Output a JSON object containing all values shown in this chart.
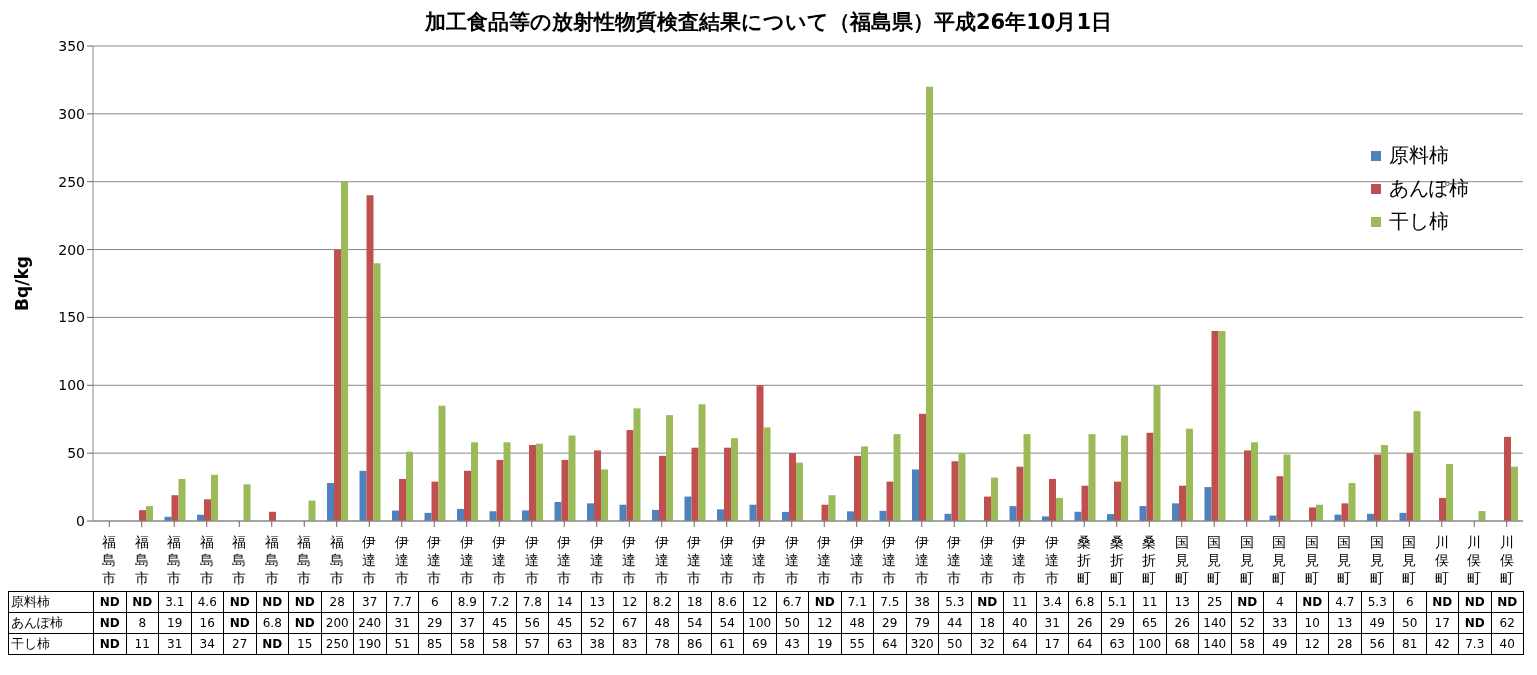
{
  "chart_data": {
    "type": "bar",
    "title": "加工食品等の放射性物質検査結果について（福島県）平成26年10月1日",
    "ylabel": "Bq/kg",
    "categories": [
      "福島市",
      "福島市",
      "福島市",
      "福島市",
      "福島市",
      "福島市",
      "福島市",
      "福島市",
      "伊達市",
      "伊達市",
      "伊達市",
      "伊達市",
      "伊達市",
      "伊達市",
      "伊達市",
      "伊達市",
      "伊達市",
      "伊達市",
      "伊達市",
      "伊達市",
      "伊達市",
      "伊達市",
      "伊達市",
      "伊達市",
      "伊達市",
      "伊達市",
      "伊達市",
      "伊達市",
      "伊達市",
      "伊達市",
      "桑折町",
      "桑折町",
      "桑折町",
      "国見町",
      "国見町",
      "国見町",
      "国見町",
      "国見町",
      "国見町",
      "国見町",
      "国見町",
      "川俣町",
      "川俣町",
      "川俣町"
    ],
    "series": [
      {
        "name": "原料柿",
        "color": "#4f81bd",
        "values": [
          null,
          null,
          3.1,
          4.6,
          null,
          null,
          null,
          28,
          37,
          7.7,
          6,
          8.9,
          7.2,
          7.8,
          14,
          13,
          12,
          8.2,
          18,
          8.6,
          12,
          6.7,
          null,
          7.1,
          7.5,
          38,
          5.3,
          null,
          11,
          3.4,
          6.8,
          5.1,
          11,
          13,
          25,
          null,
          4,
          null,
          4.7,
          5.3,
          6,
          null,
          null,
          null
        ],
        "value_labels": [
          "ND",
          "ND",
          "3.1",
          "4.6",
          "ND",
          "ND",
          "ND",
          "28",
          "37",
          "7.7",
          "6",
          "8.9",
          "7.2",
          "7.8",
          "14",
          "13",
          "12",
          "8.2",
          "18",
          "8.6",
          "12",
          "6.7",
          "ND",
          "7.1",
          "7.5",
          "38",
          "5.3",
          "ND",
          "11",
          "3.4",
          "6.8",
          "5.1",
          "11",
          "13",
          "25",
          "ND",
          "4",
          "ND",
          "4.7",
          "5.3",
          "6",
          "ND",
          "ND",
          "ND"
        ]
      },
      {
        "name": "あんぽ柿",
        "color": "#c0504d",
        "values": [
          null,
          8,
          19,
          16,
          null,
          6.8,
          null,
          200,
          240,
          31,
          29,
          37,
          45,
          56,
          45,
          52,
          67,
          48,
          54,
          54,
          100,
          50,
          12,
          48,
          29,
          79,
          44,
          18,
          40,
          31,
          26,
          29,
          65,
          26,
          140,
          52,
          33,
          10,
          13,
          49,
          50,
          17,
          null,
          62
        ],
        "value_labels": [
          "ND",
          "8",
          "19",
          "16",
          "ND",
          "6.8",
          "ND",
          "200",
          "240",
          "31",
          "29",
          "37",
          "45",
          "56",
          "45",
          "52",
          "67",
          "48",
          "54",
          "54",
          "100",
          "50",
          "12",
          "48",
          "29",
          "79",
          "44",
          "18",
          "40",
          "31",
          "26",
          "29",
          "65",
          "26",
          "140",
          "52",
          "33",
          "10",
          "13",
          "49",
          "50",
          "17",
          "ND",
          "62"
        ]
      },
      {
        "name": "干し柿",
        "color": "#9bbb59",
        "values": [
          null,
          11,
          31,
          34,
          27,
          null,
          15,
          250,
          190,
          51,
          85,
          58,
          58,
          57,
          63,
          38,
          83,
          78,
          86,
          61,
          69,
          43,
          19,
          55,
          64,
          320,
          50,
          32,
          64,
          17,
          64,
          63,
          100,
          68,
          140,
          58,
          49,
          12,
          28,
          56,
          81,
          42,
          7.3,
          40
        ],
        "value_labels": [
          "ND",
          "11",
          "31",
          "34",
          "27",
          "ND",
          "15",
          "250",
          "190",
          "51",
          "85",
          "58",
          "58",
          "57",
          "63",
          "38",
          "83",
          "78",
          "86",
          "61",
          "69",
          "43",
          "19",
          "55",
          "64",
          "320",
          "50",
          "32",
          "64",
          "17",
          "64",
          "63",
          "100",
          "68",
          "140",
          "58",
          "49",
          "12",
          "28",
          "56",
          "81",
          "42",
          "7.3",
          "40"
        ]
      }
    ],
    "ylim": [
      0,
      350
    ],
    "yticks": [
      0,
      50,
      100,
      150,
      200,
      250,
      300,
      350
    ],
    "grid": "y",
    "legend": "top right"
  }
}
